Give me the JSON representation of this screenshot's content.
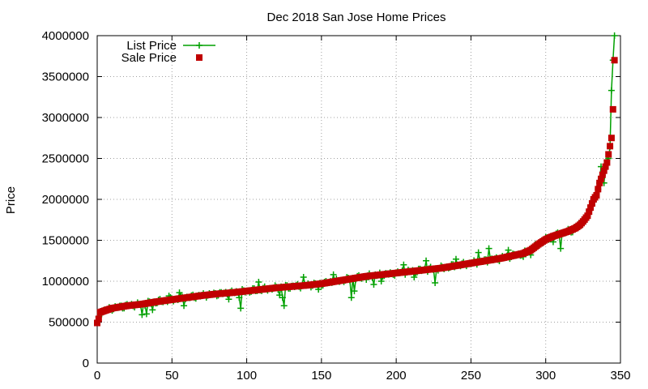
{
  "chart_data": {
    "type": "line",
    "title": "Dec 2018 San Jose Home Prices",
    "xlabel": "",
    "ylabel": "Price",
    "xlim": [
      0,
      350
    ],
    "ylim": [
      0,
      4000000
    ],
    "x_ticks": [
      "0",
      "50",
      "100",
      "150",
      "200",
      "250",
      "300",
      "350"
    ],
    "y_ticks": [
      "0",
      "500000",
      "1000000",
      "1500000",
      "2000000",
      "2500000",
      "3000000",
      "3500000",
      "4000000"
    ],
    "grid": true,
    "legend_position": "top-left",
    "sale_price_anchors": {
      "x": [
        0,
        1,
        2,
        5,
        10,
        20,
        30,
        40,
        50,
        60,
        70,
        80,
        90,
        100,
        110,
        120,
        130,
        140,
        150,
        160,
        170,
        180,
        190,
        200,
        210,
        220,
        230,
        240,
        250,
        260,
        270,
        280,
        285,
        290,
        295,
        300,
        305,
        310,
        315,
        320,
        323,
        325,
        328,
        330,
        332,
        334,
        336,
        338,
        340,
        341,
        342,
        343,
        344,
        345,
        346
      ],
      "y": [
        490000,
        540000,
        620000,
        640000,
        670000,
        700000,
        720000,
        750000,
        775000,
        800000,
        825000,
        845000,
        860000,
        880000,
        900000,
        920000,
        935000,
        950000,
        970000,
        1000000,
        1030000,
        1060000,
        1080000,
        1100000,
        1120000,
        1140000,
        1160000,
        1190000,
        1220000,
        1250000,
        1280000,
        1320000,
        1340000,
        1380000,
        1450000,
        1510000,
        1550000,
        1580000,
        1610000,
        1650000,
        1690000,
        1730000,
        1800000,
        1900000,
        2000000,
        2050000,
        2200000,
        2300000,
        2400000,
        2450000,
        2550000,
        2650000,
        2750000,
        3100000,
        3700000
      ]
    },
    "list_price_outliers": [
      {
        "x": 30,
        "y": 590000
      },
      {
        "x": 33,
        "y": 600000
      },
      {
        "x": 37,
        "y": 650000
      },
      {
        "x": 48,
        "y": 820000
      },
      {
        "x": 55,
        "y": 860000
      },
      {
        "x": 58,
        "y": 700000
      },
      {
        "x": 88,
        "y": 780000
      },
      {
        "x": 95,
        "y": 800000
      },
      {
        "x": 96,
        "y": 670000
      },
      {
        "x": 108,
        "y": 990000
      },
      {
        "x": 122,
        "y": 830000
      },
      {
        "x": 124,
        "y": 800000
      },
      {
        "x": 125,
        "y": 700000
      },
      {
        "x": 138,
        "y": 1050000
      },
      {
        "x": 148,
        "y": 900000
      },
      {
        "x": 158,
        "y": 1080000
      },
      {
        "x": 170,
        "y": 800000
      },
      {
        "x": 172,
        "y": 880000
      },
      {
        "x": 180,
        "y": 1020000
      },
      {
        "x": 185,
        "y": 960000
      },
      {
        "x": 190,
        "y": 1000000
      },
      {
        "x": 197,
        "y": 1090000
      },
      {
        "x": 205,
        "y": 1200000
      },
      {
        "x": 212,
        "y": 1050000
      },
      {
        "x": 220,
        "y": 1250000
      },
      {
        "x": 226,
        "y": 980000
      },
      {
        "x": 240,
        "y": 1270000
      },
      {
        "x": 255,
        "y": 1350000
      },
      {
        "x": 262,
        "y": 1400000
      },
      {
        "x": 275,
        "y": 1380000
      },
      {
        "x": 285,
        "y": 1300000
      },
      {
        "x": 290,
        "y": 1320000
      },
      {
        "x": 305,
        "y": 1480000
      },
      {
        "x": 310,
        "y": 1400000
      },
      {
        "x": 318,
        "y": 1600000
      },
      {
        "x": 323,
        "y": 1700000
      },
      {
        "x": 337,
        "y": 2400000
      },
      {
        "x": 339,
        "y": 2200000
      },
      {
        "x": 342,
        "y": 2500000
      },
      {
        "x": 344,
        "y": 3330000
      },
      {
        "x": 345,
        "y": 3700000
      },
      {
        "x": 346,
        "y": 4000000
      }
    ],
    "series": [
      {
        "name": "List Price",
        "color": "#00a000",
        "marker": "plus",
        "style": "linespoints"
      },
      {
        "name": "Sale Price",
        "color": "#c00000",
        "marker": "square",
        "style": "points"
      }
    ]
  }
}
